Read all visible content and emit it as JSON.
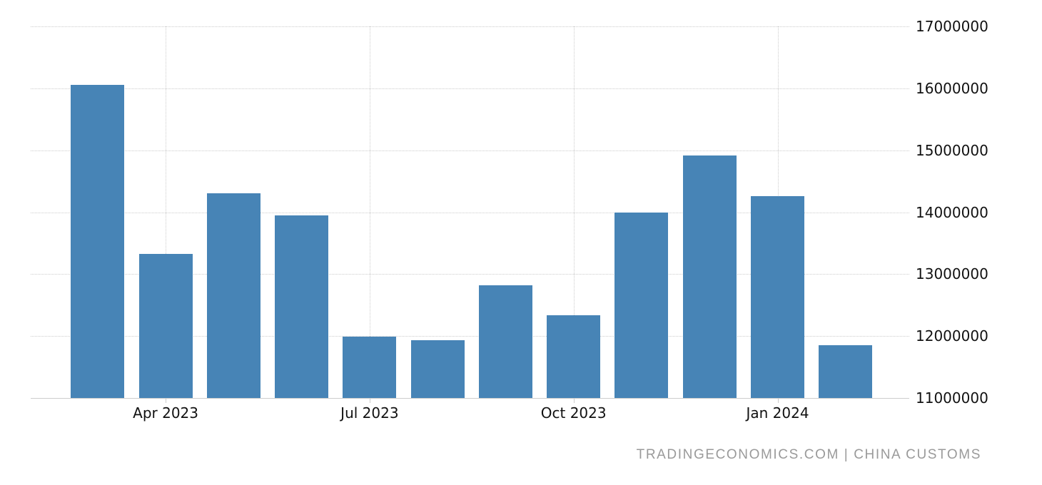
{
  "chart_data": {
    "type": "bar",
    "categories": [
      "Mar 2023",
      "Apr 2023",
      "May 2023",
      "Jun 2023",
      "Jul 2023",
      "Aug 2023",
      "Sep 2023",
      "Oct 2023",
      "Nov 2023",
      "Dec 2023",
      "Jan 2024",
      "Feb 2024"
    ],
    "values": [
      16060000,
      13330000,
      14310000,
      13950000,
      11990000,
      11930000,
      12820000,
      12340000,
      13990000,
      14920000,
      14260000,
      11850000
    ],
    "title": "",
    "xlabel": "",
    "ylabel": "",
    "ylim": [
      11000000,
      17000000
    ],
    "y_ticks": [
      17000000,
      16000000,
      15000000,
      14000000,
      13000000,
      12000000,
      11000000
    ],
    "y_tick_labels": [
      "17000000",
      "16000000",
      "15000000",
      "14000000",
      "13000000",
      "12000000",
      "11000000"
    ],
    "x_tick_labels": [
      "Apr 2023",
      "Jul 2023",
      "Oct 2023",
      "Jan 2024"
    ],
    "x_tick_category_indexes": [
      1,
      4,
      7,
      10
    ],
    "grid": "dotted horizontal lines at every million; dotted vertical lines at labeled months",
    "legend": "none",
    "colors": {
      "bar": "#4784b6",
      "grid": "#cccccc",
      "axis_text": "#111111",
      "attribution_text": "#9a9a9a",
      "background": "#ffffff"
    }
  },
  "attribution": {
    "text": "TRADINGECONOMICS.COM | CHINA CUSTOMS"
  }
}
